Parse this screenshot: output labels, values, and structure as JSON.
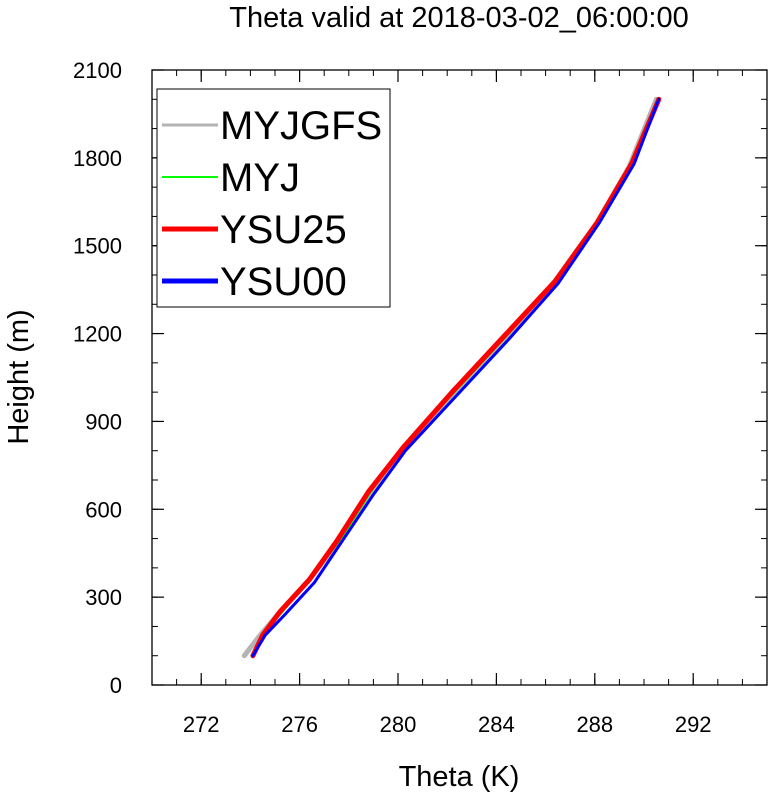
{
  "chart_data": {
    "type": "line",
    "title": "Theta valid at 2018-03-02_06:00:00",
    "xlabel": "Theta (K)",
    "ylabel": "Height (m)",
    "xlim": [
      270,
      295
    ],
    "ylim": [
      0,
      2100
    ],
    "xticks": [
      272,
      276,
      280,
      284,
      288,
      292
    ],
    "yticks": [
      0,
      300,
      600,
      900,
      1200,
      1500,
      1800,
      2100
    ],
    "grid": false,
    "legend_position": "top-left",
    "series": [
      {
        "name": "MYJGFS",
        "color": "#b4b4b4",
        "points": [
          [
            273.75,
            100
          ],
          [
            274.3,
            160
          ],
          [
            275.2,
            250
          ],
          [
            276.4,
            360
          ],
          [
            277.6,
            490
          ],
          [
            278.9,
            650
          ],
          [
            280.2,
            800
          ],
          [
            282.2,
            990
          ],
          [
            284.3,
            1180
          ],
          [
            286.3,
            1370
          ],
          [
            288.1,
            1580
          ],
          [
            289.4,
            1770
          ],
          [
            290.5,
            2000
          ]
        ]
      },
      {
        "name": "MYJ",
        "color": "#00ff00",
        "points": [
          [
            274.05,
            100
          ],
          [
            274.5,
            170
          ],
          [
            275.3,
            250
          ],
          [
            276.5,
            370
          ],
          [
            277.7,
            500
          ],
          [
            278.9,
            660
          ],
          [
            280.2,
            810
          ],
          [
            282.3,
            1000
          ],
          [
            284.4,
            1190
          ],
          [
            286.4,
            1380
          ],
          [
            288.1,
            1580
          ],
          [
            289.4,
            1770
          ],
          [
            290.55,
            2000
          ]
        ]
      },
      {
        "name": "YSU25",
        "color": "#ff0000",
        "points": [
          [
            274.1,
            100
          ],
          [
            274.5,
            170
          ],
          [
            275.2,
            250
          ],
          [
            276.4,
            360
          ],
          [
            277.5,
            490
          ],
          [
            278.8,
            660
          ],
          [
            280.2,
            810
          ],
          [
            282.2,
            1000
          ],
          [
            284.3,
            1190
          ],
          [
            286.4,
            1380
          ],
          [
            288.1,
            1580
          ],
          [
            289.5,
            1780
          ],
          [
            290.6,
            2000
          ]
        ]
      },
      {
        "name": "YSU00",
        "color": "#0000ff",
        "points": [
          [
            274.1,
            100
          ],
          [
            274.6,
            170
          ],
          [
            275.4,
            240
          ],
          [
            276.6,
            350
          ],
          [
            277.8,
            500
          ],
          [
            279.0,
            650
          ],
          [
            280.3,
            800
          ],
          [
            282.4,
            990
          ],
          [
            284.5,
            1180
          ],
          [
            286.5,
            1370
          ],
          [
            288.2,
            1580
          ],
          [
            289.6,
            1780
          ],
          [
            290.6,
            2000
          ]
        ]
      }
    ]
  }
}
